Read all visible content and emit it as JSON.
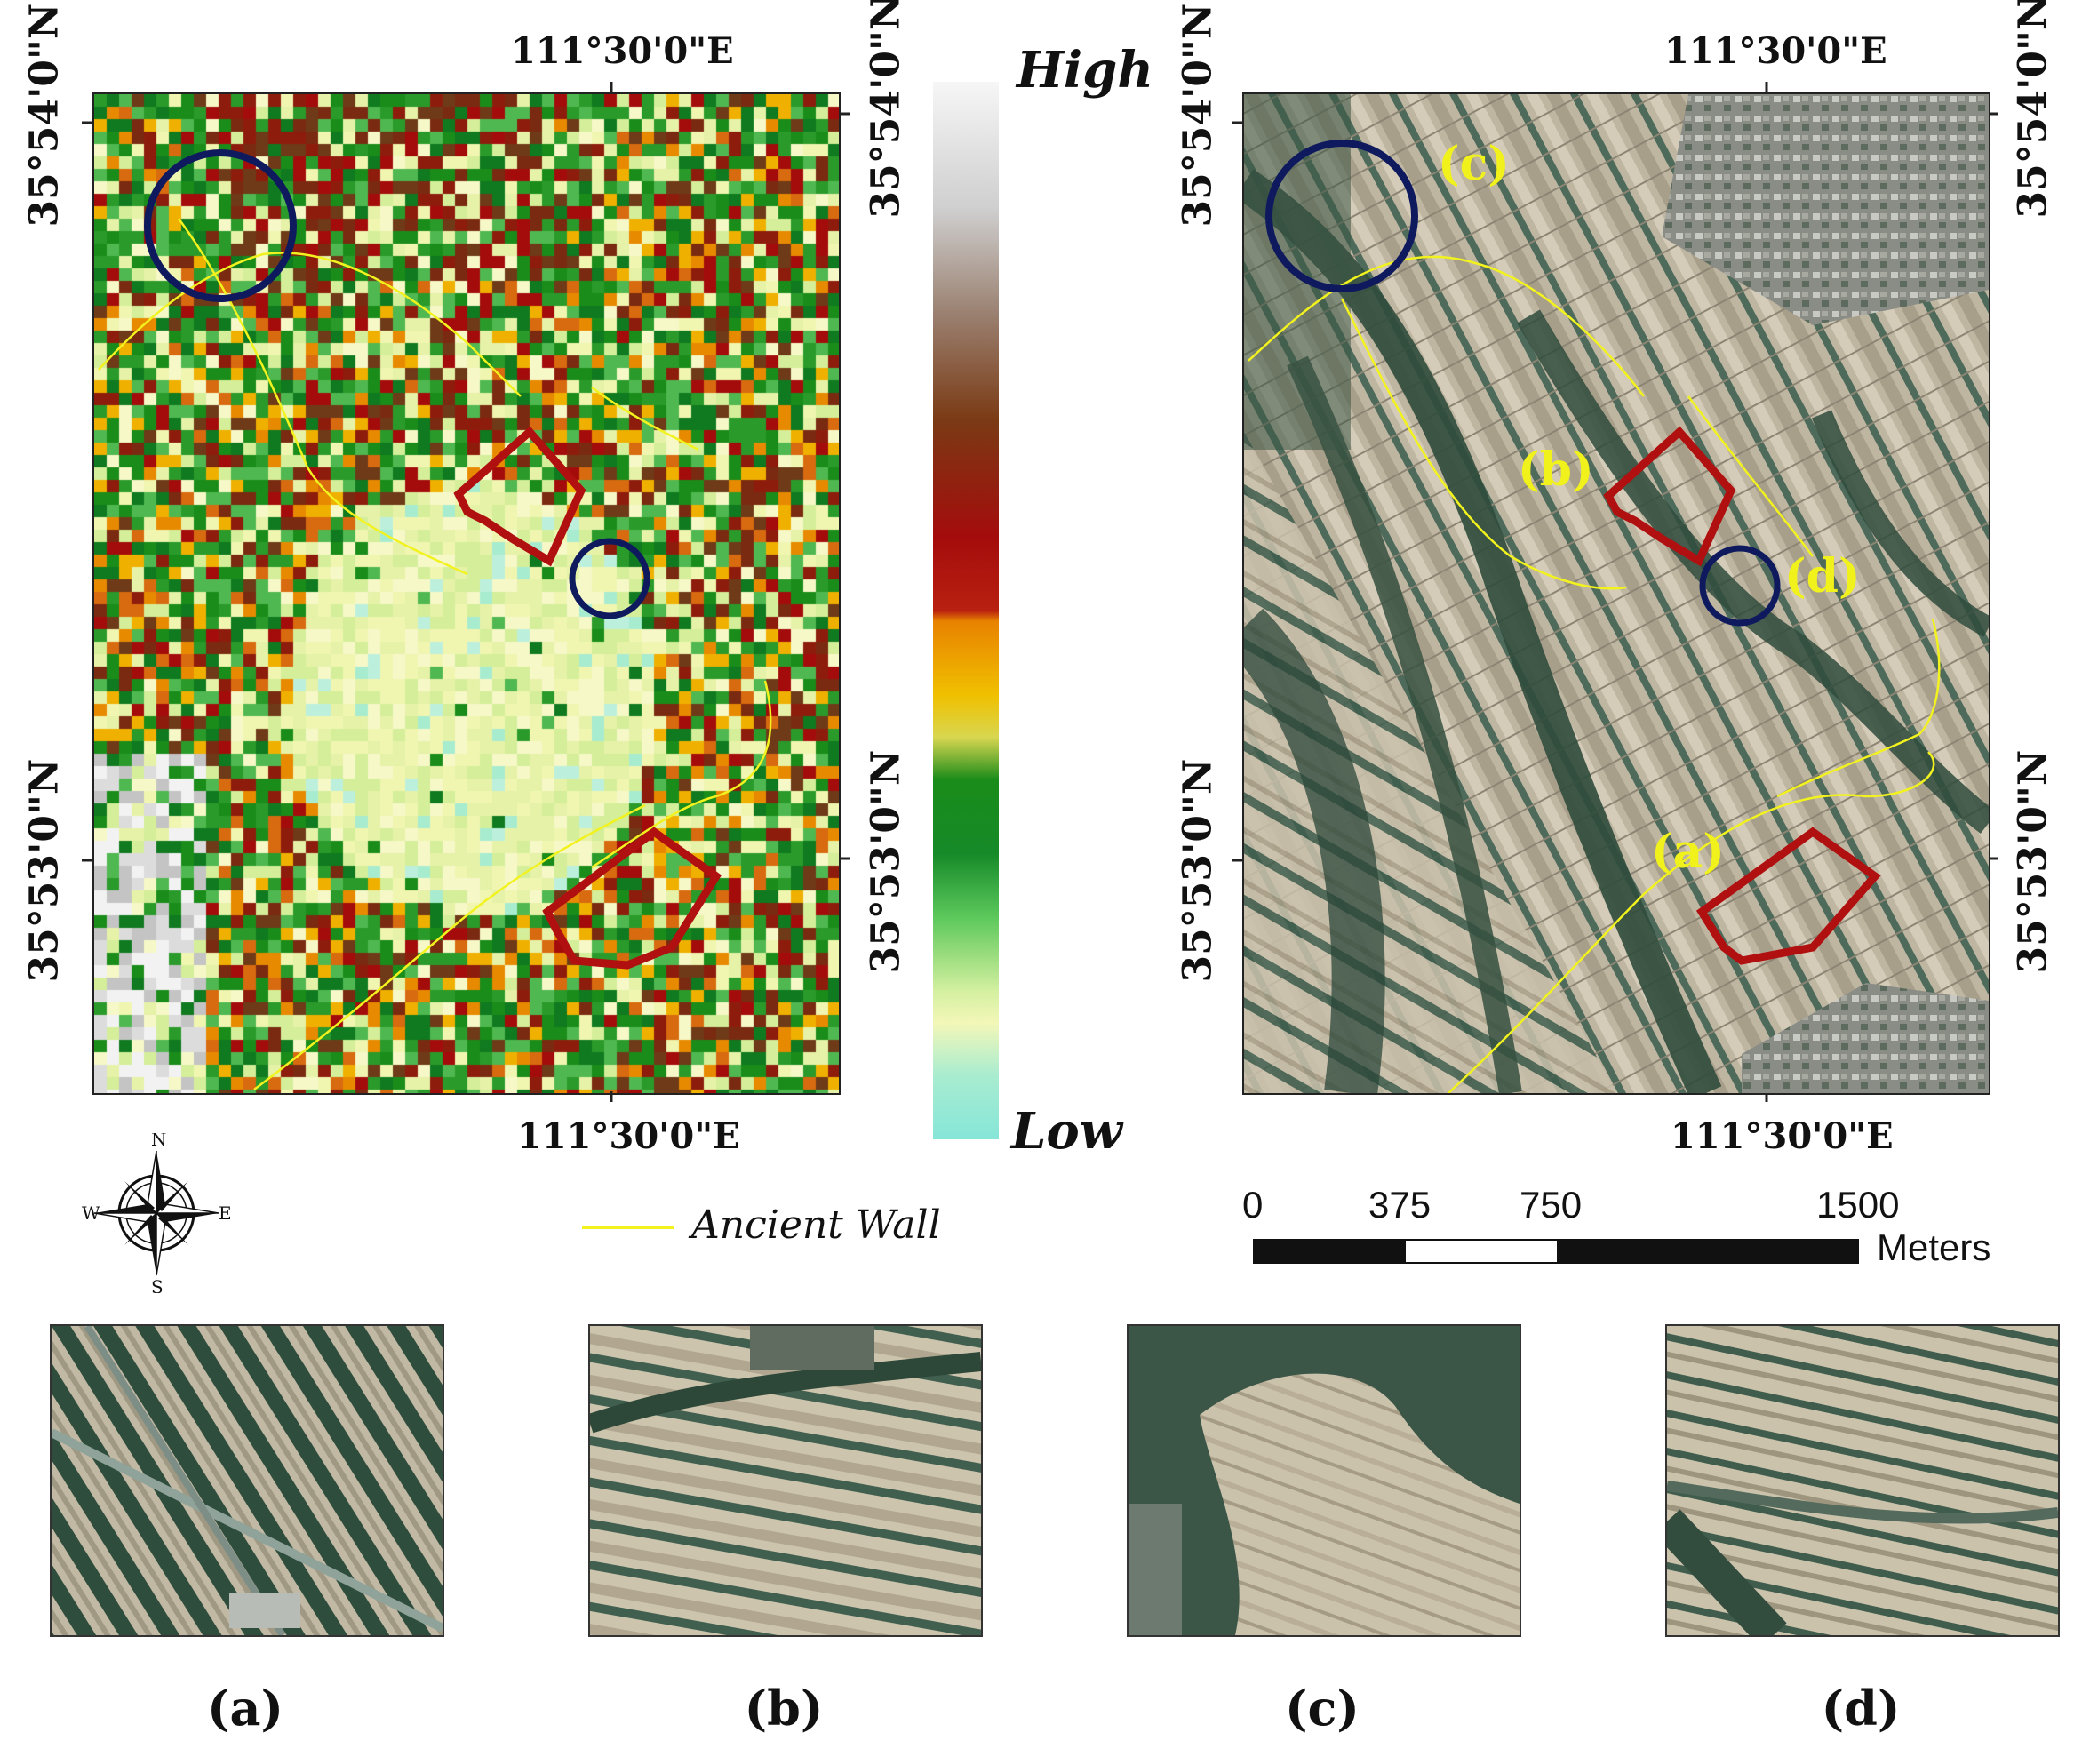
{
  "legend": {
    "high": "High",
    "low": "Low",
    "ancient_wall": "Ancient Wall"
  },
  "coords": {
    "lon_top_left": "111°30'0\"E",
    "lon_bottom_left": "111°30'0\"E",
    "lon_top_right": "111°30'0\"E",
    "lon_bottom_right": "111°30'0\"E",
    "lat_north": "35°54'0\"N",
    "lat_south": "35°53'0\"N"
  },
  "site_labels": [
    "(a)",
    "(b)",
    "(c)",
    "(d)"
  ],
  "captions": [
    "(a)",
    "(b)",
    "(c)",
    "(d)"
  ],
  "compass": {
    "n": "N",
    "s": "S",
    "e": "E",
    "w": "W"
  },
  "scalebar": {
    "ticks": [
      "0",
      "375",
      "750",
      "1500"
    ],
    "unit": "Meters"
  },
  "colors": {
    "wall": "#f2f21e",
    "site_polygon": "#b01010",
    "circle": "#0f1a5e",
    "ramp": [
      "#f4f4f4",
      "#a8a8a8",
      "#7a4a2a",
      "#9b0d0d",
      "#e88a00",
      "#f0d000",
      "#1f8a1f",
      "#6cc86c",
      "#f3f7b0",
      "#86e6d8"
    ]
  }
}
